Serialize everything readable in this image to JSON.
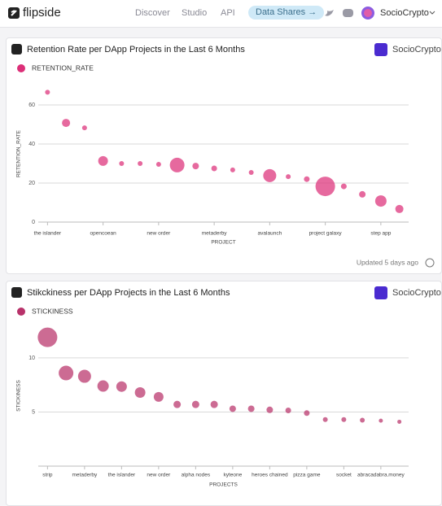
{
  "nav": {
    "brand": "flipside",
    "links": [
      "Discover",
      "Studio",
      "API"
    ],
    "button": "Data Shares →",
    "user": "SocioCrypto"
  },
  "cards": [
    {
      "author": "SocioCrypto",
      "footer": "Updated 5 days ago"
    },
    {
      "author": "SocioCrypto"
    }
  ],
  "chart_data": [
    {
      "type": "scatter",
      "title": "Retention Rate per DApp Projects in the Last 6 Months",
      "x_label": "PROJECT",
      "y_label": "RETENTION_RATE",
      "categories": [
        "the islander",
        null,
        null,
        "opencoean",
        null,
        null,
        "new order",
        null,
        null,
        "metaderby",
        null,
        null,
        "avalaunch",
        null,
        null,
        "project galaxy",
        null,
        null,
        "step app",
        null
      ],
      "series": [
        {
          "name": "RETENTION_RATE",
          "color": "#dc2f78",
          "values": [
            66.5,
            50.8,
            48.3,
            31.3,
            30,
            30,
            29.6,
            29.2,
            28.7,
            27.5,
            26.7,
            25.4,
            23.8,
            23.3,
            22,
            18.3,
            18.3,
            14.2,
            10.8,
            6.7
          ],
          "sizes": [
            3,
            5,
            3,
            6,
            3,
            3,
            3,
            9,
            4,
            3.5,
            3,
            3,
            8,
            3,
            3.5,
            12,
            3.5,
            4,
            7,
            5
          ]
        }
      ],
      "ylim": [
        0,
        70
      ],
      "yticks": [
        0,
        20,
        40,
        60
      ],
      "grid": true
    },
    {
      "type": "scatter",
      "title": "Stikckiness per DApp Projects in the Last 6 Months",
      "x_label": "PROJECTS",
      "y_label": "STICKINESS",
      "categories": [
        "strip",
        null,
        "metaderby",
        null,
        "the islander",
        null,
        "new order",
        null,
        "alpha nodes",
        null,
        "kyteone",
        null,
        "heroes chained",
        null,
        "pizza game",
        null,
        "socket",
        null,
        "abracadabra.money",
        null
      ],
      "series": [
        {
          "name": "STICKINESS",
          "color": "#b8326a",
          "values": [
            11.9,
            8.6,
            8.3,
            7.4,
            7.35,
            6.8,
            6.4,
            5.7,
            5.7,
            5.7,
            5.3,
            5.3,
            5.2,
            5.15,
            4.9,
            4.3,
            4.3,
            4.25,
            4.2,
            4.1
          ],
          "sizes": [
            12,
            9,
            8,
            7,
            6.5,
            6.5,
            6,
            4.5,
            4.5,
            4.5,
            4,
            4,
            4,
            3.5,
            3.5,
            3,
            3,
            3,
            2.5,
            2.5
          ]
        }
      ],
      "ylim": [
        0,
        13
      ],
      "yticks": [
        5,
        10
      ],
      "grid": true
    }
  ]
}
